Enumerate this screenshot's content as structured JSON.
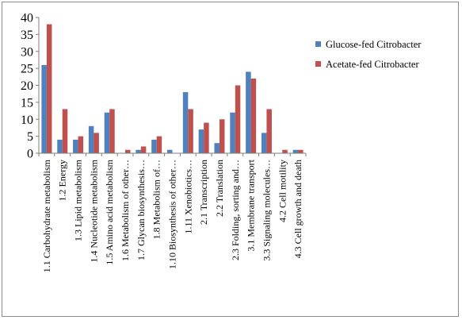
{
  "chart_data": {
    "type": "bar",
    "ylim": [
      0,
      40
    ],
    "yticks": [
      0,
      5,
      10,
      15,
      20,
      25,
      30,
      35,
      40
    ],
    "grid": false,
    "legend_position": "right",
    "categories": [
      "1.1 Carbohydrate metabolism",
      "1.2 Energy",
      "1.3 Lipid metabolism",
      "1.4 Nucleotide metabolism",
      "1.5 Amino acid metabolism",
      "1.6 Metabolism of other…",
      "1.7 Glycan biosynthesis…",
      "1.8 Metabolism of…",
      "1.10 Biosynthesis of other…",
      "1.11 Xenobiotics…",
      "2.1 Transcription",
      "2.2 Translation",
      "2.3 Folding, sorting and…",
      "3.1 Membrane transport",
      "3.3 Signaling molecules…",
      "4.2 Cell motility",
      "4.3 Cell growth and death"
    ],
    "series": [
      {
        "name": "Glucose-fed Citrobacter",
        "color": "#4f81bd",
        "values": [
          26,
          4,
          4,
          8,
          12,
          0,
          1,
          4,
          1,
          18,
          7,
          3,
          12,
          24,
          6,
          0,
          1
        ]
      },
      {
        "name": "Acetate-fed Citrobacter",
        "color": "#c0504d",
        "values": [
          38,
          13,
          5,
          6,
          13,
          1,
          2,
          5,
          0,
          13,
          9,
          10,
          20,
          22,
          13,
          1,
          1
        ]
      }
    ]
  }
}
